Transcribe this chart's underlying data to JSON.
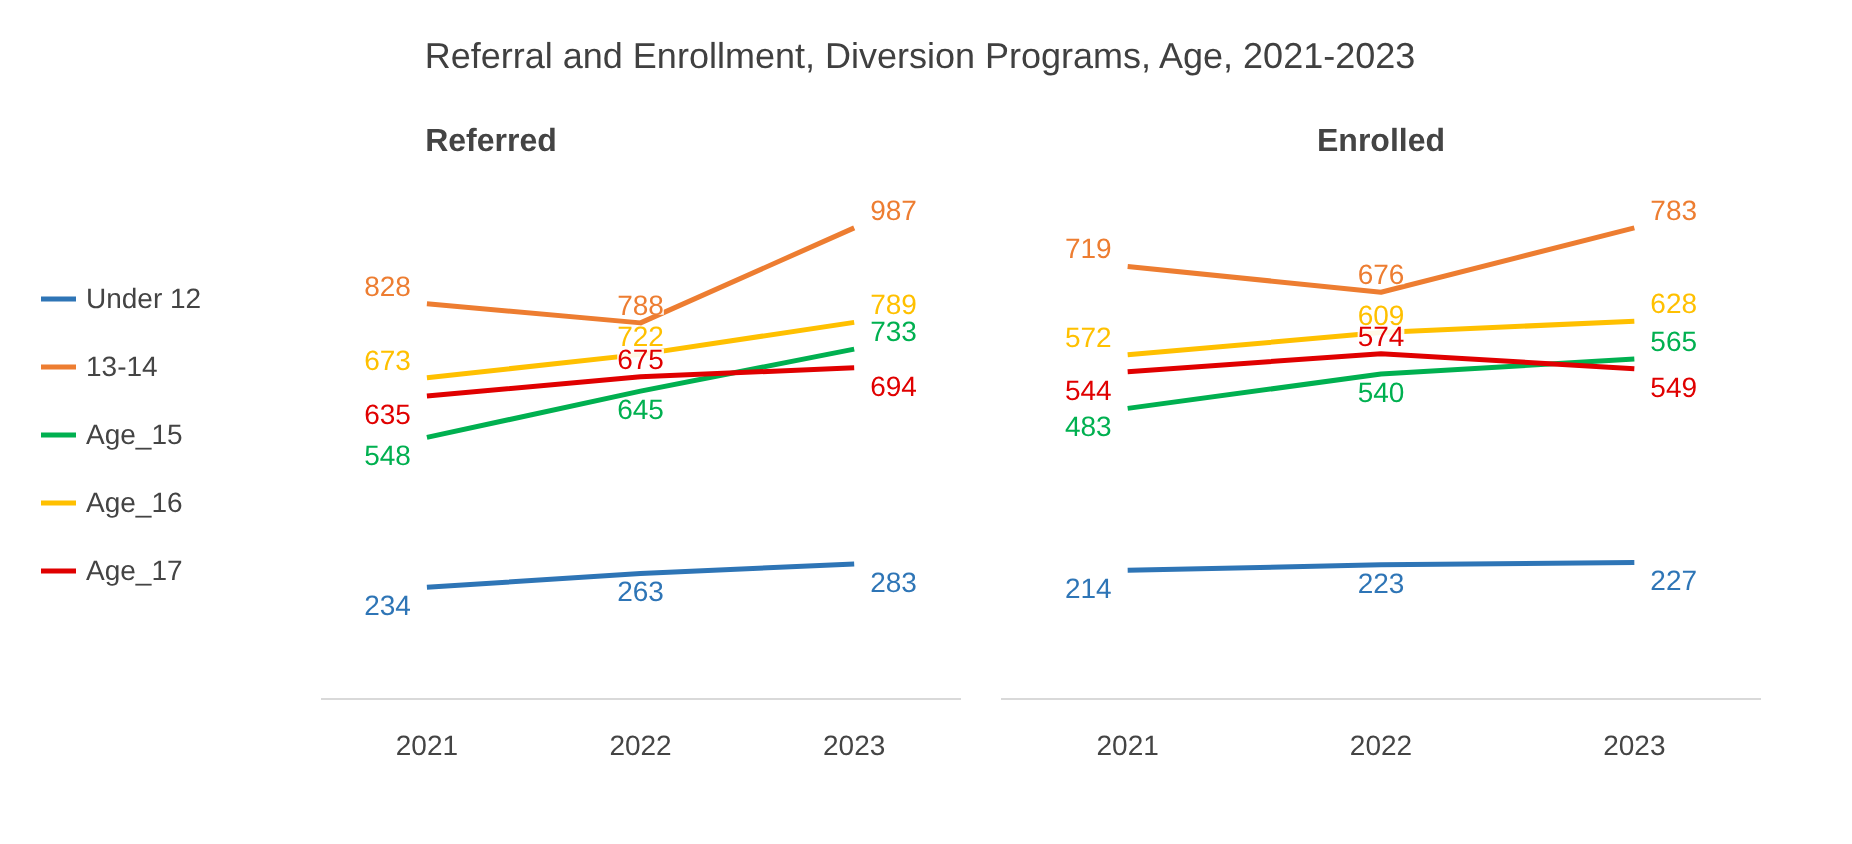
{
  "chart_data": [
    {
      "type": "line",
      "title": "Referred",
      "annotations": [
        "Referral and Enrollment, Diversion Programs, Age, 2021-2023"
      ],
      "categories": [
        "2021",
        "2022",
        "2023"
      ],
      "tick_labels": "x",
      "grid": false,
      "legend": "left",
      "data_labels": true,
      "series": [
        {
          "name": "Under 12",
          "color": "#2e75b6",
          "values": [
            234,
            263,
            283
          ]
        },
        {
          "name": "13-14",
          "color": "#ed7d31",
          "values": [
            828,
            788,
            987
          ]
        },
        {
          "name": "Age_15",
          "color": "#00b050",
          "values": [
            548,
            645,
            733
          ]
        },
        {
          "name": "Age_16",
          "color": "#ffc000",
          "values": [
            673,
            722,
            789
          ]
        },
        {
          "name": "Age_17",
          "color": "#e00000",
          "values": [
            635,
            675,
            694
          ]
        }
      ]
    },
    {
      "type": "line",
      "title": "Enrolled",
      "categories": [
        "2021",
        "2022",
        "2023"
      ],
      "tick_labels": "x",
      "grid": false,
      "data_labels": true,
      "series": [
        {
          "color": "#2e75b6",
          "values": [
            214,
            223,
            227
          ]
        },
        {
          "color": "#ed7d31",
          "values": [
            719,
            676,
            783
          ]
        },
        {
          "color": "#00b050",
          "values": [
            483,
            540,
            565
          ]
        },
        {
          "color": "#ffc000",
          "values": [
            572,
            609,
            628
          ]
        },
        {
          "color": "#e00000",
          "values": [
            544,
            574,
            549
          ]
        }
      ]
    }
  ]
}
